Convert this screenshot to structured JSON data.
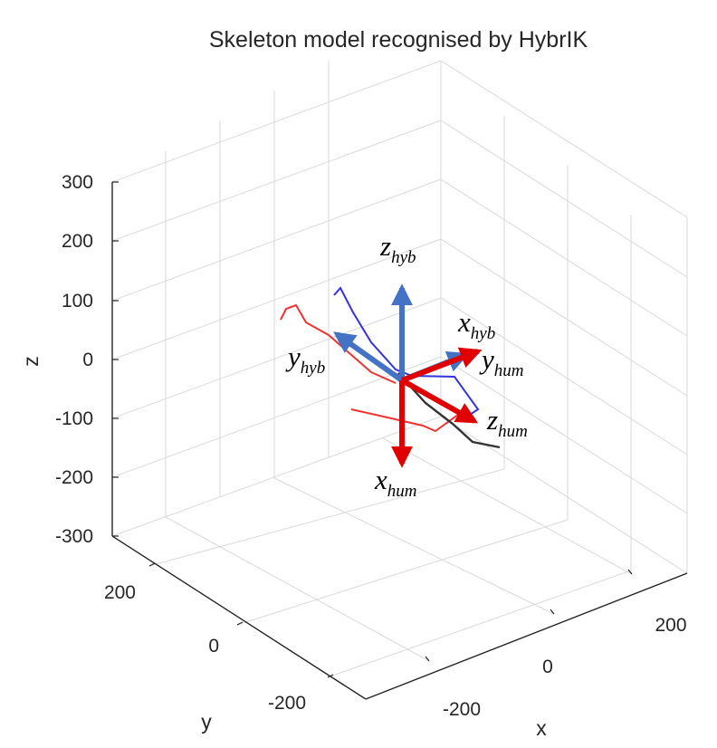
{
  "chart_data": {
    "type": "3d-line",
    "title": "Skeleton model recognised by HybrIK",
    "axes": {
      "x": {
        "label": "x",
        "ticks": [
          -200,
          0,
          200
        ],
        "range": [
          -300,
          300
        ]
      },
      "y": {
        "label": "y",
        "ticks": [
          -200,
          0,
          200
        ],
        "range": [
          -300,
          300
        ]
      },
      "z": {
        "label": "z",
        "ticks": [
          -300,
          -200,
          -100,
          0,
          100,
          200,
          300
        ],
        "range": [
          -300,
          300
        ]
      }
    },
    "grid": true,
    "colors": {
      "blue_limb": "#3333e0",
      "red_limb": "#ee3333",
      "dark_limb": "#333333",
      "hyb_frame": "#4472c4",
      "hum_frame": "#e00000",
      "grid": "#d9d9d9",
      "axis": "#262626"
    },
    "frames": [
      {
        "main": "z",
        "sub": "hyb",
        "direction": "up",
        "color": "#4472c4"
      },
      {
        "main": "x",
        "sub": "hyb",
        "direction": "up-right",
        "color": "#4472c4"
      },
      {
        "main": "y",
        "sub": "hyb",
        "direction": "up-left",
        "color": "#4472c4"
      },
      {
        "main": "y",
        "sub": "hum",
        "direction": "up-right",
        "color": "#e00000"
      },
      {
        "main": "z",
        "sub": "hum",
        "direction": "down-right",
        "color": "#e00000"
      },
      {
        "main": "x",
        "sub": "hum",
        "direction": "down",
        "color": "#e00000"
      }
    ]
  }
}
